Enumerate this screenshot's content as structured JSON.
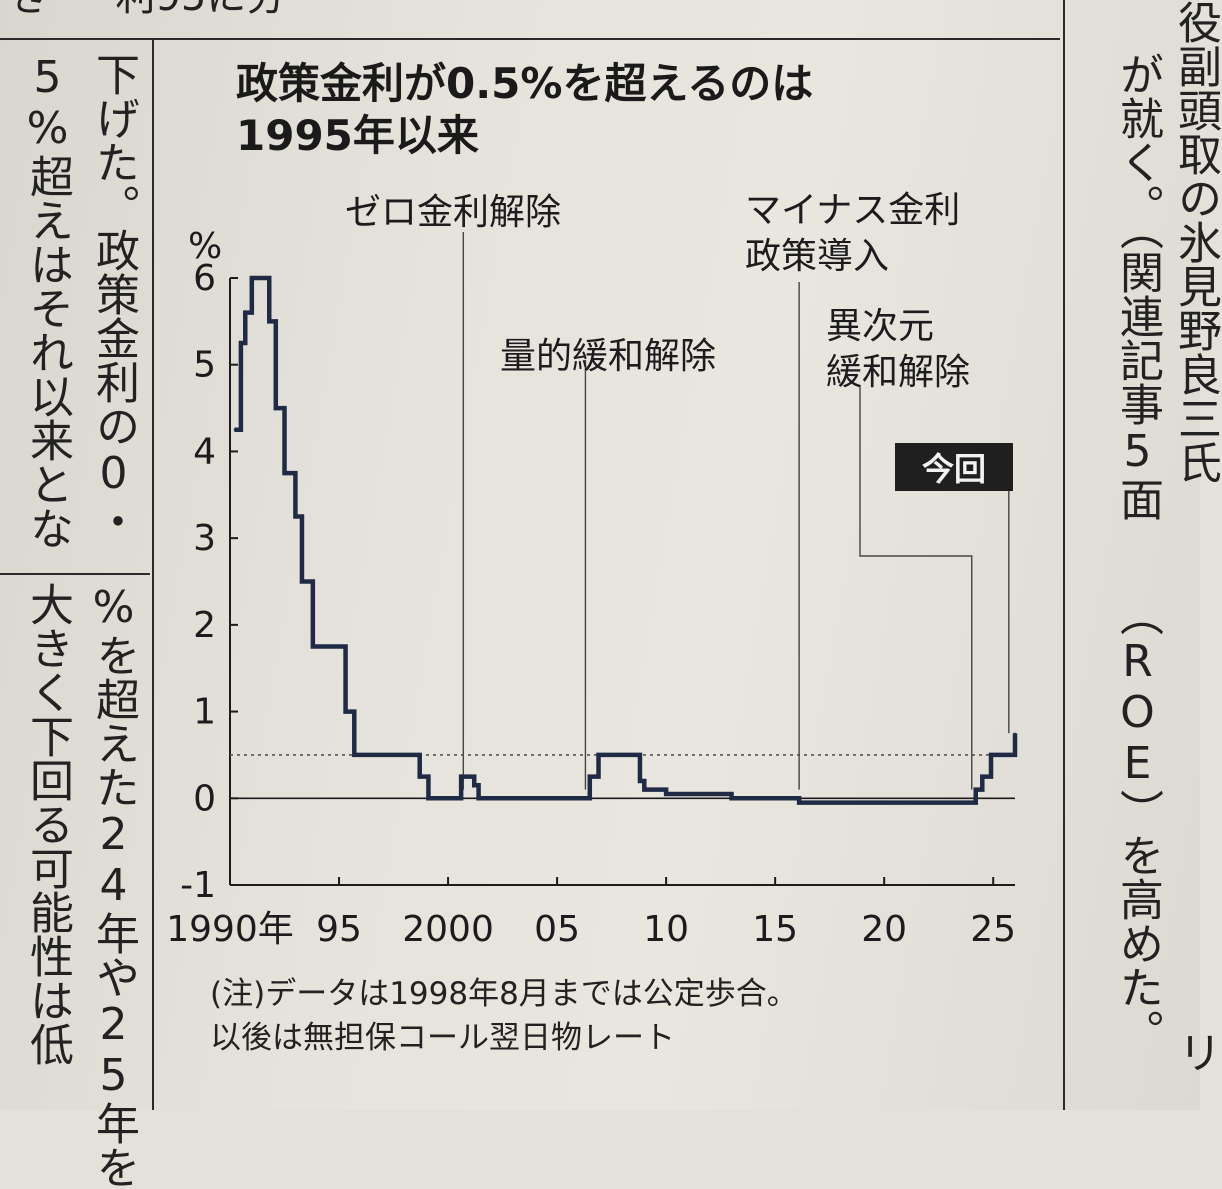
{
  "article": {
    "top_fragment": "き ・ 利95に分",
    "left_column_1": [
      "5%超えはそれ以来とな",
      "大きく下回る可能性は低"
    ],
    "left_column_2": [
      "下げた。政策金利の0・",
      "%を超えた24年や25年を"
    ],
    "right_column_1": [
      "が就く。（関連記事5面",
      "（ROE）を高めた。"
    ],
    "right_column_2": [
      "役副頭取の氷見野良三氏",
      "リ"
    ]
  },
  "chart_data": {
    "type": "line",
    "title": "政策金利が0.5%を超えるのは\n1995年以来",
    "ylabel": "%",
    "ylim": [
      -1,
      6
    ],
    "yticks": [
      "-1",
      "0",
      "1",
      "2",
      "3",
      "4",
      "5",
      "6"
    ],
    "xlim": [
      1990,
      2026
    ],
    "xticks": [
      {
        "label": "1990年",
        "x": 1990
      },
      {
        "label": "95",
        "x": 1995
      },
      {
        "label": "2000",
        "x": 2000
      },
      {
        "label": "05",
        "x": 2005
      },
      {
        "label": "10",
        "x": 2010
      },
      {
        "label": "15",
        "x": 2015
      },
      {
        "label": "20",
        "x": 2020
      },
      {
        "label": "25",
        "x": 2025
      }
    ],
    "reference_line": 0.5,
    "series": [
      {
        "x": [
          1990.2,
          1990.5,
          1990.7,
          1991.0,
          1991.5,
          1991.8,
          1992.1,
          1992.5,
          1993.0,
          1993.3,
          1993.8,
          1994.5,
          1995.3,
          1995.7,
          1998.7,
          1999.1,
          2000.6,
          2001.2,
          2001.4,
          2006.5,
          2006.9,
          2007.2,
          2008.8,
          2009.0,
          2010.0,
          2013.0,
          2016.1,
          2016.5,
          2024.2,
          2024.5,
          2024.9,
          2025.2,
          2026.0
        ],
        "y": [
          4.25,
          5.25,
          5.6,
          6.0,
          6.0,
          5.5,
          4.5,
          3.75,
          3.25,
          2.5,
          1.75,
          1.75,
          1.0,
          0.5,
          0.25,
          0.0,
          0.25,
          0.15,
          0.0,
          0.25,
          0.5,
          0.5,
          0.2,
          0.1,
          0.05,
          0.0,
          -0.05,
          -0.05,
          0.1,
          0.25,
          0.5,
          0.5,
          0.75
        ]
      }
    ],
    "annotations": [
      {
        "text": "ゼロ金利解除",
        "x": 2000.7
      },
      {
        "text": "量的緩和解除",
        "x": 2006.3
      },
      {
        "text": "マイナス金利\n政策導入",
        "x": 2016.1
      },
      {
        "text": "異次元\n緩和解除",
        "x": 2024.2
      },
      {
        "text": "今回",
        "x": 2025.9
      }
    ]
  },
  "note": "(注)データは1998年8月までは公定歩合。\n以後は無担保コール翌日物レート",
  "colors": {
    "line": "#1f2b45",
    "ink": "#1c1c1e",
    "paper": "#e4e1da"
  }
}
